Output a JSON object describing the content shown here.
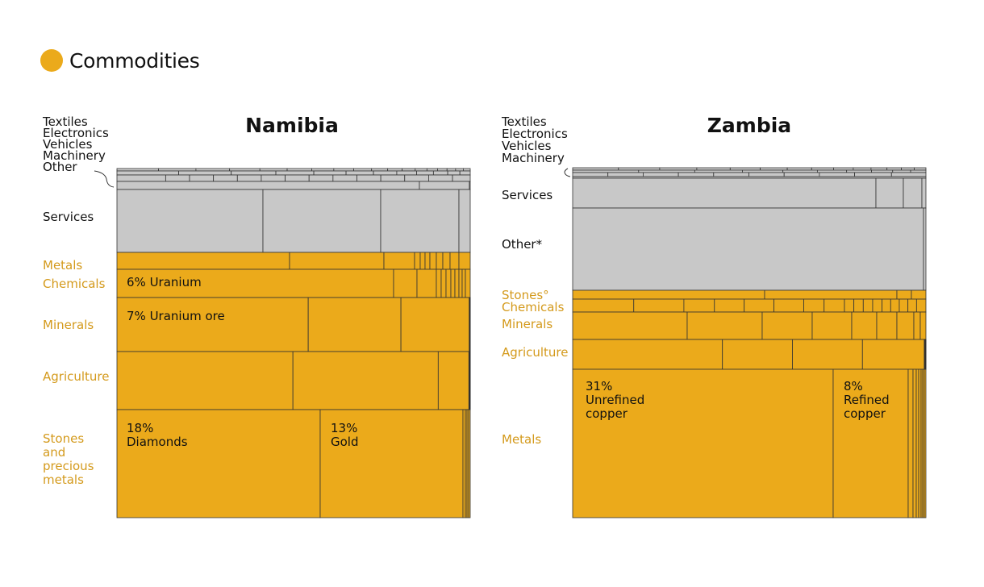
{
  "legend": {
    "label": "Commodities",
    "color": "#EBAA1B"
  },
  "colors": {
    "commodity": "#EBAA1B",
    "other": "#C8C8C8",
    "stroke": "#333333",
    "label_commodity": "#D49A1C",
    "label_other": "#111111"
  },
  "chart_data": [
    {
      "type": "treemap",
      "title": "Namibia",
      "group_labels": [
        {
          "label": "Textiles",
          "kind": "other"
        },
        {
          "label": "Electronics",
          "kind": "other"
        },
        {
          "label": "Vehicles",
          "kind": "other"
        },
        {
          "label": "Machinery",
          "kind": "other"
        },
        {
          "label": "Other",
          "kind": "other"
        },
        {
          "label": "Services",
          "kind": "other"
        },
        {
          "label": "Metals",
          "kind": "commodity"
        },
        {
          "label": "Chemicals",
          "kind": "commodity"
        },
        {
          "label": "Minerals",
          "kind": "commodity"
        },
        {
          "label": "Agriculture",
          "kind": "commodity"
        },
        {
          "label": "Stones and precious metals",
          "kind": "commodity"
        }
      ],
      "annotations": [
        {
          "text": "6% Uranium",
          "group": "Chemicals",
          "percent": 6
        },
        {
          "text": "7% Uranium ore",
          "group": "Minerals",
          "percent": 7
        },
        {
          "text": "18% Diamonds",
          "group": "Stones and precious metals",
          "percent": 18
        },
        {
          "text": "13% Gold",
          "group": "Stones and precious metals",
          "percent": 13
        }
      ]
    },
    {
      "type": "treemap",
      "title": "Zambia",
      "group_labels": [
        {
          "label": "Textiles",
          "kind": "other"
        },
        {
          "label": "Electronics",
          "kind": "other"
        },
        {
          "label": "Vehicles",
          "kind": "other"
        },
        {
          "label": "Machinery",
          "kind": "other"
        },
        {
          "label": "Services",
          "kind": "other"
        },
        {
          "label": "Other*",
          "kind": "other"
        },
        {
          "label": "Stones°",
          "kind": "commodity"
        },
        {
          "label": "Chemicals",
          "kind": "commodity"
        },
        {
          "label": "Minerals",
          "kind": "commodity"
        },
        {
          "label": "Agriculture",
          "kind": "commodity"
        },
        {
          "label": "Metals",
          "kind": "commodity"
        }
      ],
      "annotations": [
        {
          "text": "31% Unrefined copper",
          "group": "Metals",
          "percent": 31
        },
        {
          "text": "8% Refined copper",
          "group": "Metals",
          "percent": 8
        }
      ]
    }
  ]
}
